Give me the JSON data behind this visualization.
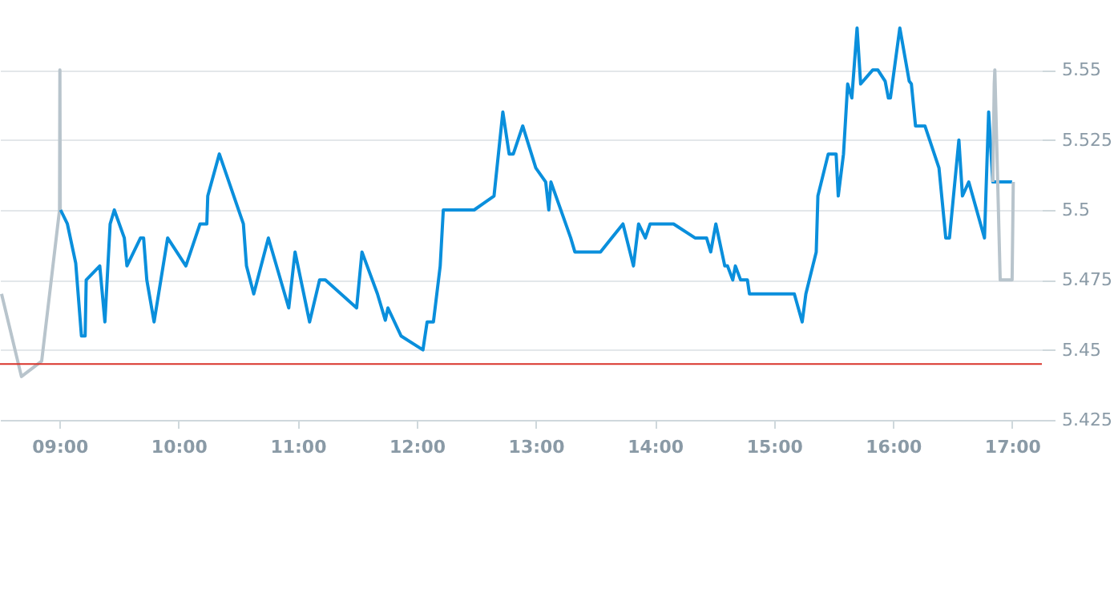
{
  "chart_data": {
    "type": "line",
    "xlim": [
      8.5,
      17.25
    ],
    "xticks": [
      {
        "value": 9,
        "label": "09:00"
      },
      {
        "value": 10,
        "label": "10:00"
      },
      {
        "value": 11,
        "label": "11:00"
      },
      {
        "value": 12,
        "label": "12:00"
      },
      {
        "value": 13,
        "label": "13:00"
      },
      {
        "value": 14,
        "label": "14:00"
      },
      {
        "value": 15,
        "label": "15:00"
      },
      {
        "value": 16,
        "label": "16:00"
      },
      {
        "value": 17,
        "label": "17:00"
      }
    ],
    "ylim": [
      5.425,
      5.575
    ],
    "yticks": [
      5.425,
      5.45,
      5.475,
      5.5,
      5.525,
      5.55
    ],
    "grid": "y",
    "marker": "none",
    "line_style": "solid",
    "ref_lines": [
      {
        "axis": "y",
        "value": 5.445,
        "color": "#d9342b"
      }
    ],
    "series": [
      {
        "color": "#b8c4cc",
        "x": [
          8.513,
          8.68,
          8.85,
          9.0,
          9.003,
          9.006
        ],
        "values": [
          5.47,
          5.4405,
          5.446,
          5.5,
          5.55,
          5.5
        ]
      },
      {
        "color": "#0a8fdc",
        "x": [
          9.009,
          9.066,
          9.136,
          9.184,
          9.215,
          9.224,
          9.338,
          9.381,
          9.425,
          9.46,
          9.544,
          9.566,
          9.68,
          9.706,
          9.733,
          9.794,
          9.908,
          10.061,
          10.18,
          10.237,
          10.245,
          10.342,
          10.544,
          10.57,
          10.631,
          10.754,
          10.925,
          10.978,
          11.1,
          11.184,
          11.232,
          11.495,
          11.54,
          11.67,
          11.736,
          11.758,
          11.868,
          12.052,
          12.087,
          12.14,
          12.197,
          12.223,
          12.482,
          12.649,
          12.723,
          12.776,
          12.811,
          12.89,
          13.0,
          13.083,
          13.109,
          13.127,
          13.293,
          13.328,
          13.543,
          13.732,
          13.82,
          13.863,
          13.92,
          13.96,
          14.157,
          14.337,
          14.434,
          14.469,
          14.512,
          14.587,
          14.61,
          14.654,
          14.676,
          14.72,
          14.777,
          14.794,
          15.171,
          15.237,
          15.268,
          15.355,
          15.369,
          15.456,
          15.522,
          15.54,
          15.584,
          15.619,
          15.654,
          15.698,
          15.728,
          15.829,
          15.873,
          15.934,
          15.961,
          15.978,
          16.057,
          16.136,
          16.154,
          16.189,
          16.268,
          16.386,
          16.443,
          16.474,
          16.553,
          16.583,
          16.636,
          16.768,
          16.803,
          16.838,
          17.0
        ],
        "values": [
          5.5,
          5.495,
          5.481,
          5.455,
          5.455,
          5.475,
          5.48,
          5.46,
          5.495,
          5.5,
          5.49,
          5.48,
          5.49,
          5.49,
          5.475,
          5.46,
          5.49,
          5.48,
          5.495,
          5.495,
          5.505,
          5.52,
          5.495,
          5.48,
          5.47,
          5.49,
          5.465,
          5.485,
          5.46,
          5.475,
          5.475,
          5.465,
          5.485,
          5.47,
          5.4606,
          5.465,
          5.455,
          5.45,
          5.46,
          5.46,
          5.48,
          5.5,
          5.5,
          5.505,
          5.535,
          5.52,
          5.52,
          5.53,
          5.515,
          5.51,
          5.5,
          5.51,
          5.49,
          5.485,
          5.485,
          5.495,
          5.48,
          5.495,
          5.49,
          5.495,
          5.495,
          5.49,
          5.49,
          5.485,
          5.495,
          5.48,
          5.48,
          5.475,
          5.48,
          5.475,
          5.475,
          5.47,
          5.47,
          5.46,
          5.47,
          5.485,
          5.505,
          5.52,
          5.52,
          5.505,
          5.52,
          5.545,
          5.54,
          5.565,
          5.545,
          5.55,
          5.55,
          5.546,
          5.54,
          5.54,
          5.565,
          5.546,
          5.545,
          5.53,
          5.53,
          5.515,
          5.49,
          5.49,
          5.525,
          5.505,
          5.51,
          5.49,
          5.535,
          5.51,
          5.51
        ]
      },
      {
        "color": "#b8c4cc",
        "x": [
          16.838,
          16.85,
          16.855,
          16.9,
          17.0,
          17.01
        ],
        "values": [
          5.51,
          5.545,
          5.55,
          5.475,
          5.475,
          5.51
        ]
      }
    ]
  }
}
